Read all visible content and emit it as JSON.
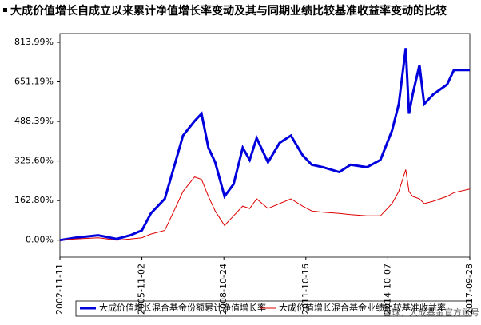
{
  "chart_data": {
    "type": "line",
    "title": "大成价值增长自成立以来累计净值增长率变动及其与同期业绩比较基准收益率变动的比较",
    "watermark": "雪球：大成基金官方账号",
    "x": [
      "2002-11-11",
      "2003-06-01",
      "2004-04-01",
      "2004-12-01",
      "2005-06-01",
      "2005-11-02",
      "2006-03-01",
      "2006-09-01",
      "2007-01-01",
      "2007-05-01",
      "2007-10-01",
      "2008-01-01",
      "2008-04-01",
      "2008-07-01",
      "2008-11-01",
      "2009-03-01",
      "2009-07-01",
      "2009-10-01",
      "2010-01-01",
      "2010-06-01",
      "2010-11-01",
      "2011-04-01",
      "2011-09-01",
      "2012-01-01",
      "2012-06-01",
      "2013-01-01",
      "2013-06-01",
      "2014-01-01",
      "2014-07-01",
      "2014-12-01",
      "2015-03-01",
      "2015-06-01",
      "2015-07-15",
      "2015-09-01",
      "2015-12-01",
      "2016-02-01",
      "2016-06-01",
      "2016-12-01",
      "2017-03-01",
      "2017-09-28"
    ],
    "series": [
      {
        "name": "大成价值增长混合基金份额累计净值增长率",
        "color": "#0000dd",
        "values": [
          0,
          10,
          20,
          5,
          20,
          40,
          110,
          170,
          300,
          430,
          490,
          520,
          380,
          320,
          180,
          230,
          380,
          330,
          420,
          320,
          400,
          430,
          350,
          310,
          300,
          280,
          310,
          300,
          330,
          450,
          560,
          790,
          520,
          600,
          720,
          560,
          600,
          640,
          700,
          700
        ]
      },
      {
        "name": "大成价值增长混合基金业绩比较基准收益率",
        "color": "#dd0000",
        "values": [
          0,
          5,
          10,
          0,
          5,
          10,
          25,
          40,
          120,
          200,
          260,
          250,
          180,
          120,
          60,
          100,
          140,
          130,
          170,
          130,
          150,
          170,
          140,
          120,
          115,
          110,
          105,
          100,
          100,
          150,
          200,
          290,
          200,
          180,
          170,
          150,
          160,
          180,
          195,
          210
        ]
      }
    ],
    "xlim": [
      "2002-11-11",
      "2017-09-28"
    ],
    "xticks": [
      "2002-11-11",
      "2005-11-02",
      "2008-10-24",
      "2011-10-16",
      "2014-10-07",
      "2017-09-28"
    ],
    "ylim": [
      -70,
      850
    ],
    "yticks": [
      {
        "value": 0,
        "label": "0.00%"
      },
      {
        "value": 162.8,
        "label": "162.80%"
      },
      {
        "value": 325.6,
        "label": "325.60%"
      },
      {
        "value": 488.39,
        "label": "488.39%"
      },
      {
        "value": 651.19,
        "label": "651.19%"
      },
      {
        "value": 813.99,
        "label": "813.99%"
      }
    ],
    "grid": false
  }
}
